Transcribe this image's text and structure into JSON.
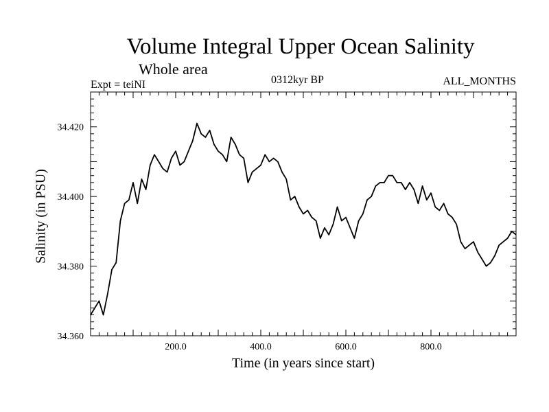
{
  "chart_data": {
    "type": "line",
    "title": "Volume Integral Upper Ocean Salinity",
    "subtitle": "Whole area",
    "expt_label": "Expt = teiNI",
    "period_label": "0312kyr BP",
    "months_label": "ALL_MONTHS",
    "xlabel": "Time (in years since start)",
    "ylabel": "Salinity (in PSU)",
    "xlim": [
      0,
      1000
    ],
    "ylim": [
      34.36,
      34.43
    ],
    "xticks": [
      {
        "value": 200,
        "label": "200.0"
      },
      {
        "value": 400,
        "label": "400.0"
      },
      {
        "value": 600,
        "label": "600.0"
      },
      {
        "value": 800,
        "label": "800.0"
      }
    ],
    "yticks": [
      {
        "value": 34.36,
        "label": "34.360"
      },
      {
        "value": 34.38,
        "label": "34.380"
      },
      {
        "value": 34.4,
        "label": "34.400"
      },
      {
        "value": 34.42,
        "label": "34.420"
      }
    ],
    "series": [
      {
        "name": "Salinity",
        "color": "#000000",
        "x": [
          0,
          10,
          20,
          30,
          40,
          50,
          60,
          70,
          80,
          90,
          100,
          110,
          120,
          130,
          140,
          150,
          160,
          170,
          180,
          190,
          200,
          210,
          220,
          230,
          240,
          250,
          260,
          270,
          280,
          290,
          300,
          310,
          320,
          330,
          340,
          350,
          360,
          370,
          380,
          390,
          400,
          410,
          420,
          430,
          440,
          450,
          460,
          470,
          480,
          490,
          500,
          510,
          520,
          530,
          540,
          550,
          560,
          570,
          580,
          590,
          600,
          610,
          620,
          630,
          640,
          650,
          660,
          670,
          680,
          690,
          700,
          710,
          720,
          730,
          740,
          750,
          760,
          770,
          780,
          790,
          800,
          810,
          820,
          830,
          840,
          850,
          860,
          870,
          880,
          890,
          900,
          910,
          920,
          930,
          940,
          950,
          960,
          970,
          980,
          990,
          1000
        ],
        "values": [
          34.366,
          34.368,
          34.37,
          34.366,
          34.372,
          34.379,
          34.381,
          34.393,
          34.398,
          34.399,
          34.404,
          34.398,
          34.405,
          34.402,
          34.409,
          34.412,
          34.41,
          34.408,
          34.407,
          34.411,
          34.413,
          34.409,
          34.41,
          34.413,
          34.416,
          34.421,
          34.418,
          34.417,
          34.419,
          34.415,
          34.413,
          34.412,
          34.41,
          34.417,
          34.415,
          34.412,
          34.411,
          34.404,
          34.407,
          34.408,
          34.409,
          34.412,
          34.41,
          34.411,
          34.41,
          34.407,
          34.405,
          34.399,
          34.4,
          34.397,
          34.395,
          34.396,
          34.394,
          34.393,
          34.388,
          34.391,
          34.389,
          34.392,
          34.397,
          34.393,
          34.394,
          34.391,
          34.388,
          34.393,
          34.395,
          34.399,
          34.4,
          34.403,
          34.404,
          34.404,
          34.406,
          34.406,
          34.404,
          34.404,
          34.402,
          34.404,
          34.402,
          34.398,
          34.403,
          34.399,
          34.401,
          34.397,
          34.396,
          34.398,
          34.395,
          34.394,
          34.392,
          34.387,
          34.385,
          34.386,
          34.387,
          34.384,
          34.382,
          34.38,
          34.381,
          34.383,
          34.386,
          34.387,
          34.388,
          34.39,
          34.389
        ]
      }
    ]
  }
}
